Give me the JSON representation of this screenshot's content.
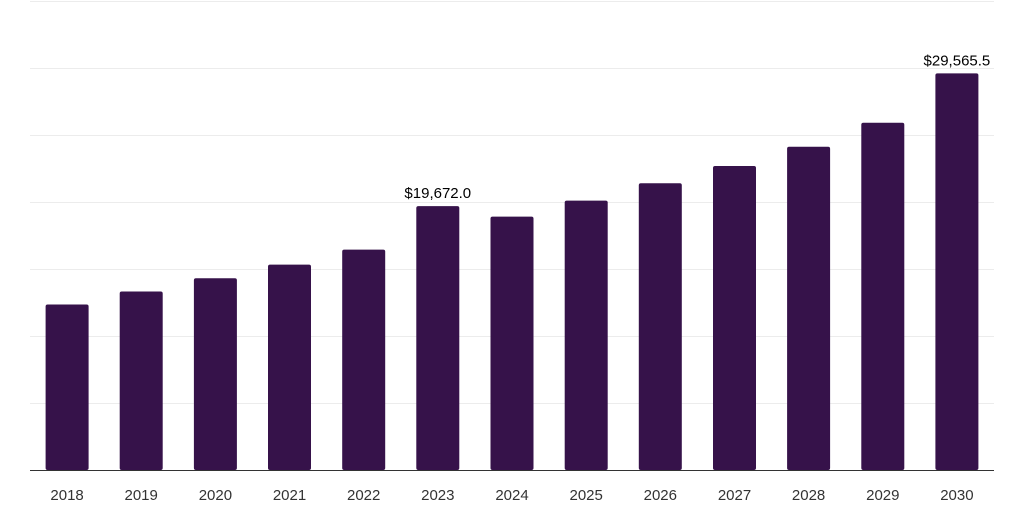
{
  "colors": {
    "bar": "#36124a",
    "grid": "#ececec",
    "axis": "#333333",
    "text": "#333333"
  },
  "chart_data": {
    "type": "bar",
    "title": "",
    "xlabel": "",
    "ylabel": "",
    "categories": [
      "2018",
      "2019",
      "2020",
      "2021",
      "2022",
      "2023",
      "2024",
      "2025",
      "2026",
      "2027",
      "2028",
      "2029",
      "2030"
    ],
    "series": [
      {
        "values": [
          12340,
          13310,
          14300,
          15310,
          16430,
          19672.0,
          18890,
          20080,
          21380,
          22660,
          24100,
          25880,
          29565.5
        ]
      }
    ],
    "data_labels": [
      {
        "index": 5,
        "text": "$19,672.0"
      },
      {
        "index": 12,
        "text": "$29,565.5"
      }
    ],
    "ylim": [
      0,
      35000
    ],
    "ytick_step": 5000,
    "grid": true,
    "yaxis_labels_visible": false
  }
}
